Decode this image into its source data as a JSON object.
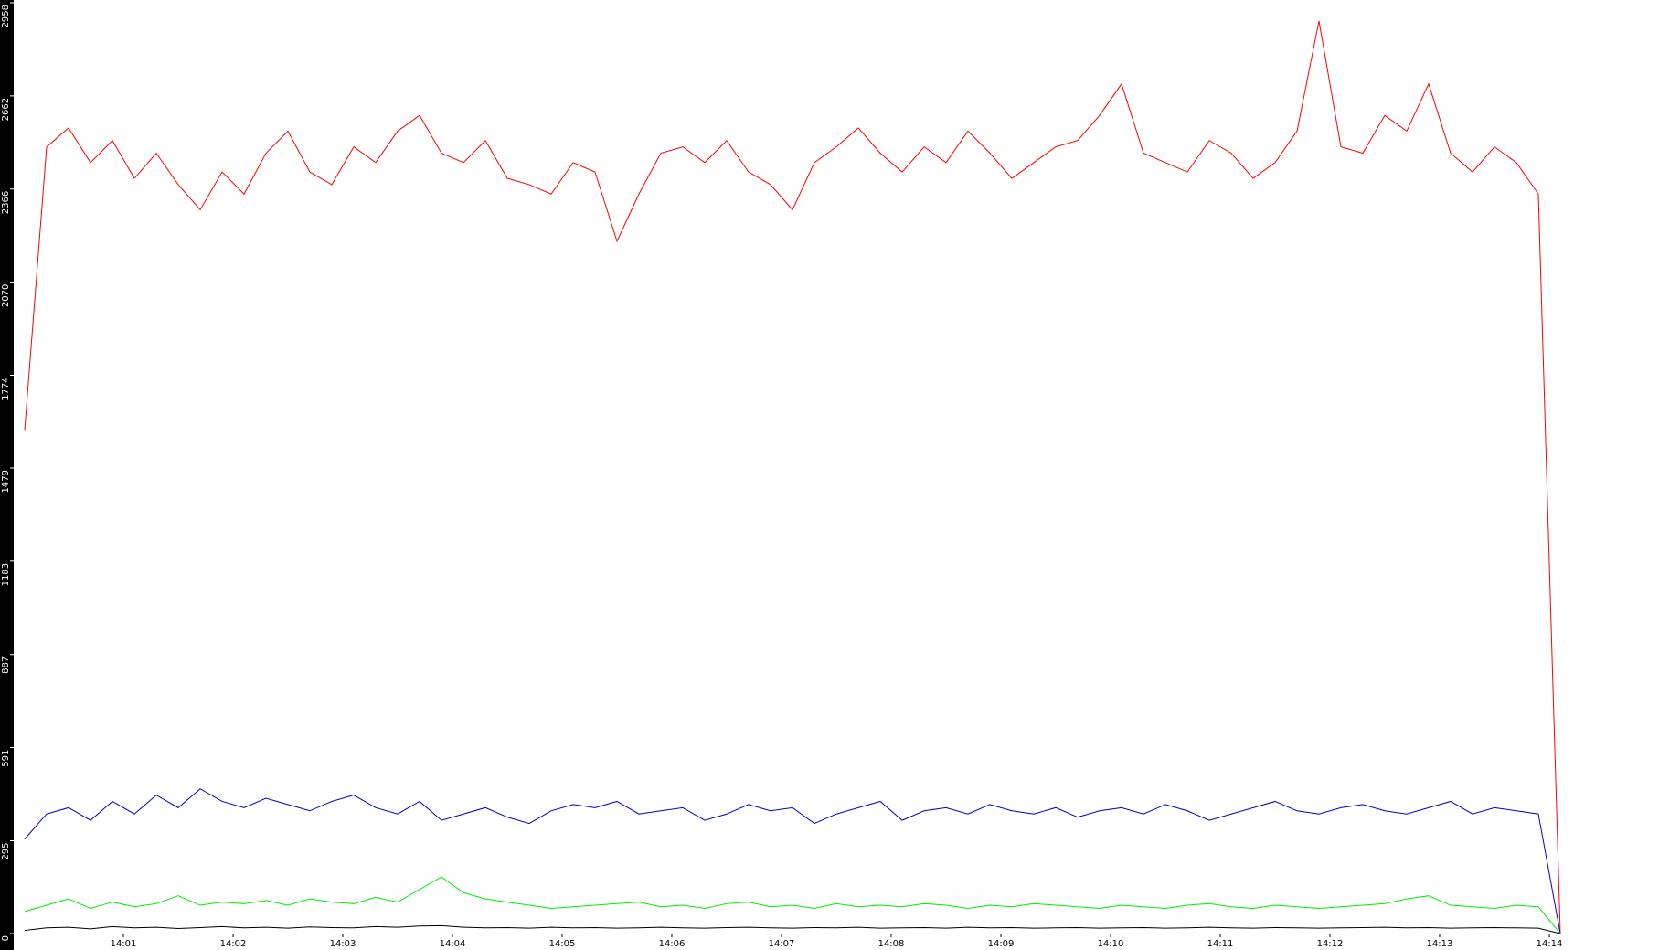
{
  "chart_data": {
    "type": "line",
    "x": [
      840.1,
      840.3,
      840.5,
      840.7,
      840.9,
      841.1,
      841.3,
      841.5,
      841.7,
      841.9,
      842.1,
      842.3,
      842.5,
      842.7,
      842.9,
      843.1,
      843.3,
      843.5,
      843.7,
      843.9,
      844.1,
      844.3,
      844.5,
      844.7,
      844.9,
      845.1,
      845.3,
      845.5,
      845.7,
      845.9,
      846.1,
      846.3,
      846.5,
      846.7,
      846.9,
      847.1,
      847.3,
      847.5,
      847.7,
      847.9,
      848.1,
      848.3,
      848.5,
      848.7,
      848.9,
      849.1,
      849.3,
      849.5,
      849.7,
      849.9,
      850.1,
      850.3,
      850.5,
      850.7,
      850.9,
      851.1,
      851.3,
      851.5,
      851.7,
      851.9,
      852.1,
      852.3,
      852.5,
      852.7,
      852.9,
      853.1,
      853.3,
      853.5,
      853.7,
      853.9,
      854.1
    ],
    "series": [
      {
        "color": "#ff0000",
        "values": [
          1600,
          2500,
          2560,
          2450,
          2520,
          2400,
          2480,
          2380,
          2300,
          2420,
          2350,
          2480,
          2550,
          2420,
          2380,
          2500,
          2450,
          2550,
          2600,
          2480,
          2450,
          2520,
          2400,
          2380,
          2350,
          2450,
          2420,
          2200,
          2350,
          2480,
          2500,
          2450,
          2520,
          2420,
          2380,
          2300,
          2450,
          2500,
          2560,
          2480,
          2420,
          2500,
          2450,
          2550,
          2480,
          2400,
          2450,
          2500,
          2520,
          2600,
          2700,
          2480,
          2450,
          2420,
          2520,
          2480,
          2400,
          2450,
          2550,
          2900,
          2500,
          2480,
          2600,
          2550,
          2700,
          2480,
          2420,
          2500,
          2450,
          2350,
          0
        ]
      },
      {
        "color": "#0000cc",
        "values": [
          300,
          380,
          400,
          360,
          420,
          380,
          440,
          400,
          460,
          420,
          400,
          430,
          410,
          390,
          420,
          440,
          400,
          380,
          420,
          360,
          380,
          400,
          370,
          350,
          390,
          410,
          400,
          420,
          380,
          390,
          400,
          360,
          380,
          410,
          390,
          400,
          350,
          380,
          400,
          420,
          360,
          390,
          400,
          380,
          410,
          390,
          380,
          400,
          370,
          390,
          400,
          380,
          410,
          390,
          360,
          380,
          400,
          420,
          390,
          380,
          400,
          410,
          390,
          380,
          400,
          420,
          380,
          400,
          390,
          380,
          0
        ]
      },
      {
        "color": "#00ee00",
        "values": [
          70,
          90,
          110,
          80,
          100,
          85,
          95,
          120,
          90,
          100,
          95,
          105,
          90,
          110,
          100,
          95,
          115,
          100,
          140,
          180,
          130,
          110,
          100,
          90,
          80,
          85,
          90,
          95,
          100,
          85,
          90,
          80,
          95,
          100,
          85,
          90,
          80,
          95,
          85,
          90,
          85,
          95,
          90,
          80,
          90,
          85,
          95,
          90,
          85,
          80,
          90,
          85,
          80,
          90,
          95,
          85,
          80,
          90,
          85,
          80,
          85,
          90,
          95,
          110,
          120,
          90,
          85,
          80,
          90,
          85,
          0
        ]
      },
      {
        "color": "#000000",
        "values": [
          10,
          18,
          20,
          15,
          22,
          18,
          20,
          16,
          19,
          22,
          18,
          20,
          17,
          21,
          19,
          18,
          22,
          20,
          24,
          25,
          20,
          18,
          19,
          17,
          20,
          18,
          19,
          17,
          18,
          20,
          18,
          17,
          19,
          20,
          18,
          17,
          19,
          18,
          20,
          17,
          18,
          19,
          17,
          20,
          18,
          19,
          17,
          18,
          19,
          17,
          18,
          19,
          17,
          18,
          20,
          18,
          17,
          19,
          18,
          17,
          18,
          19,
          20,
          18,
          19,
          17,
          18,
          19,
          18,
          17,
          0
        ]
      }
    ],
    "xlim": [
      840,
      855
    ],
    "xticks": [
      {
        "value": 841,
        "label": "14:01"
      },
      {
        "value": 842,
        "label": "14:02"
      },
      {
        "value": 843,
        "label": "14:03"
      },
      {
        "value": 844,
        "label": "14:04"
      },
      {
        "value": 845,
        "label": "14:05"
      },
      {
        "value": 846,
        "label": "14:06"
      },
      {
        "value": 847,
        "label": "14:07"
      },
      {
        "value": 848,
        "label": "14:08"
      },
      {
        "value": 849,
        "label": "14:09"
      },
      {
        "value": 850,
        "label": "14:10"
      },
      {
        "value": 851,
        "label": "14:11"
      },
      {
        "value": 852,
        "label": "14:12"
      },
      {
        "value": 853,
        "label": "14:13"
      },
      {
        "value": 854,
        "label": "14:14"
      }
    ],
    "ylim": [
      0,
      2958
    ],
    "yticks": [
      0,
      295,
      591,
      887,
      1183,
      1479,
      1774,
      2070,
      2366,
      2662,
      2958
    ]
  }
}
